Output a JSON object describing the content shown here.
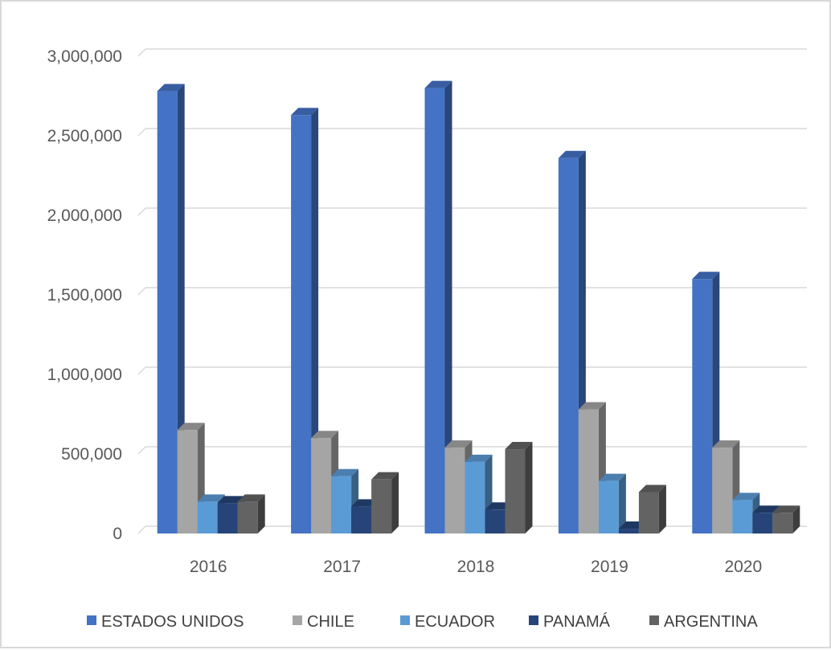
{
  "chart_data": {
    "type": "bar",
    "title": "",
    "xlabel": "",
    "ylabel": "",
    "categories": [
      "2016",
      "2017",
      "2018",
      "2019",
      "2020"
    ],
    "series": [
      {
        "name": "ESTADOS UNIDOS",
        "color": "#4472C4",
        "values": [
          2780000,
          2630000,
          2800000,
          2360000,
          1600000
        ]
      },
      {
        "name": "CHILE",
        "color": "#A5A5A5",
        "values": [
          650000,
          600000,
          540000,
          780000,
          540000
        ]
      },
      {
        "name": "ECUADOR",
        "color": "#5B9BD5",
        "values": [
          200000,
          360000,
          450000,
          330000,
          210000
        ]
      },
      {
        "name": "PANAMÁ",
        "color": "#264478",
        "values": [
          190000,
          170000,
          150000,
          30000,
          130000
        ]
      },
      {
        "name": "ARGENTINA",
        "color": "#636363",
        "values": [
          200000,
          340000,
          530000,
          260000,
          130000
        ]
      }
    ],
    "ylim": [
      0,
      3000000
    ],
    "yticks": [
      0,
      500000,
      1000000,
      1500000,
      2000000,
      2500000,
      3000000
    ],
    "ytick_labels": [
      "0",
      "500,000",
      "1,000,000",
      "1,500,000",
      "2,000,000",
      "2,500,000",
      "3,000,000"
    ],
    "grid": true,
    "legend_position": "bottom",
    "style": "3d-clustered-column"
  }
}
